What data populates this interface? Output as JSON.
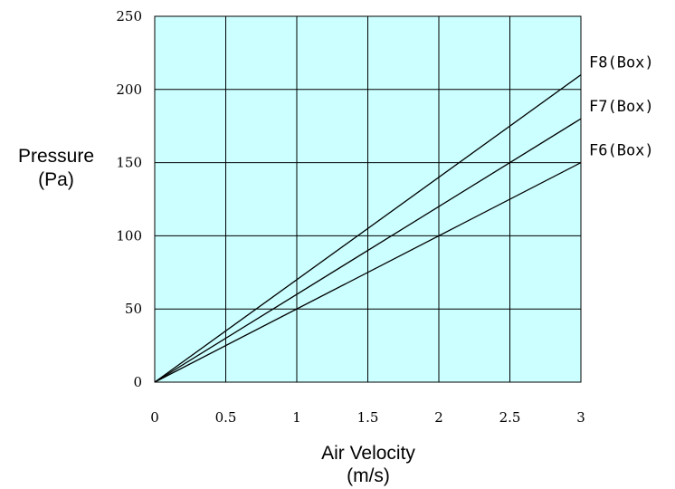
{
  "chart_data": {
    "type": "line",
    "title": "",
    "xlabel": "Air Velocity",
    "xlabel_unit": "(m/s)",
    "ylabel": "Pressure",
    "ylabel_unit": "(Pa)",
    "xlim": [
      0,
      3
    ],
    "ylim": [
      0,
      250
    ],
    "x_ticks": [
      "0",
      "0.5",
      "1",
      "1.5",
      "2",
      "2.5",
      "3"
    ],
    "x_tick_values": [
      0,
      0.5,
      1,
      1.5,
      2,
      2.5,
      3
    ],
    "y_ticks": [
      "0",
      "50",
      "100",
      "150",
      "200",
      "250"
    ],
    "y_tick_values": [
      0,
      50,
      100,
      150,
      200,
      250
    ],
    "grid": true,
    "legend": "inline-right",
    "colors": {
      "plot_background": "#ccffff",
      "line": "#000000",
      "grid": "#000000"
    },
    "series": [
      {
        "name": "F8(Box)",
        "x": [
          0,
          3
        ],
        "y": [
          0,
          210
        ]
      },
      {
        "name": "F7(Box)",
        "x": [
          0,
          3
        ],
        "y": [
          0,
          180
        ]
      },
      {
        "name": "F6(Box)",
        "x": [
          0,
          3
        ],
        "y": [
          0,
          150
        ]
      }
    ]
  }
}
